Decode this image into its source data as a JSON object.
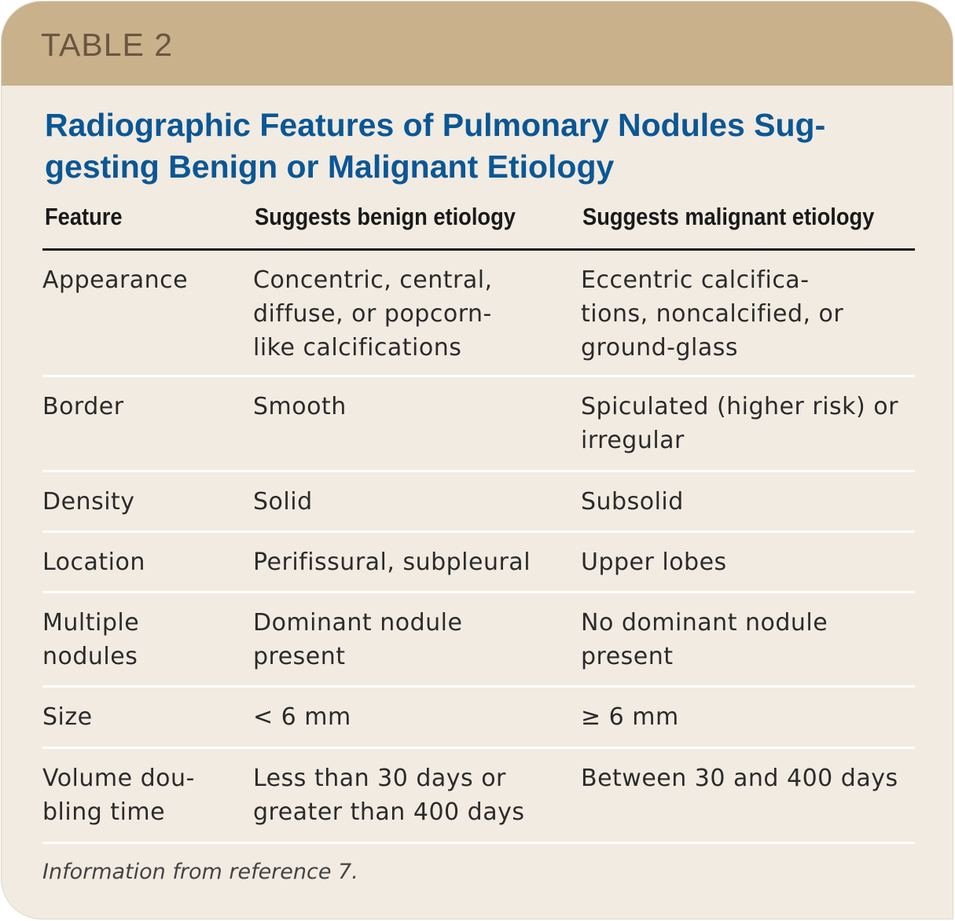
{
  "label": "TABLE 2",
  "title": "Radiographic Features of Pulmonary Nodules Sug-\ngesting Benign or Malignant Etiology",
  "headers": [
    "Feature",
    "Suggests benign etiology",
    "Suggests malignant etiology"
  ],
  "rows": [
    [
      "Appearance",
      "Concentric, central,\ndiffuse, or popcorn-\nlike calcifications",
      "Eccentric calcifica-\ntions, noncalcified, or\nground-glass"
    ],
    [
      "Border",
      "Smooth",
      "Spiculated (higher risk) or\nirregular"
    ],
    [
      "Density",
      "Solid",
      "Subsolid"
    ],
    [
      "Location",
      "Perifissural, subpleural",
      "Upper lobes"
    ],
    [
      "Multiple\nnodules",
      "Dominant nodule\npresent",
      "No dominant nodule\npresent"
    ],
    [
      "Size",
      "< 6 mm",
      "≥ 6 mm"
    ],
    [
      "Volume dou-\nbling time",
      "Less than 30 days or\ngreater than 400 days",
      "Between 30 and 400 days"
    ]
  ],
  "footnote": "Information from reference 7.",
  "colors": {
    "band": "#c8b18b",
    "label": "#6b5640",
    "title": "#0a5796",
    "background": "#f2ebe1"
  }
}
